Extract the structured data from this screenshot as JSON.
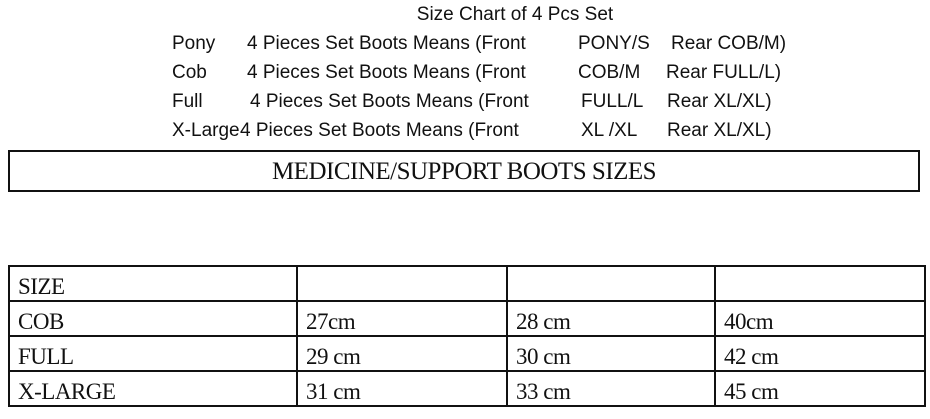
{
  "header": {
    "title": "Size Chart of 4 Pcs Set",
    "rows": [
      {
        "size": "Pony",
        "desc": "4 Pieces Set Boots Means (Front",
        "front": "PONY/S",
        "rear": "Rear COB/M)"
      },
      {
        "size": "Cob",
        "desc": "4 Pieces Set Boots Means (Front",
        "front": "COB/M",
        "rear": "Rear FULL/L)"
      },
      {
        "size": "Full",
        "desc": "4 Pieces Set Boots Means (Front",
        "front": "FULL/L",
        "rear": "Rear XL/XL)"
      },
      {
        "size": "X-Large",
        "desc": "4 Pieces Set Boots Means (Front",
        "front": "XL /XL",
        "rear": "Rear XL/XL)"
      }
    ]
  },
  "banner": "MEDICINE/SUPPORT BOOTS SIZES",
  "table": {
    "header": [
      "SIZE",
      "",
      "",
      ""
    ],
    "rows": [
      [
        "COB",
        "27cm",
        "28 cm",
        "40cm"
      ],
      [
        "FULL",
        "29 cm",
        "30 cm",
        "42 cm"
      ],
      [
        "X-LARGE",
        "31 cm",
        "33 cm",
        "45 cm"
      ]
    ]
  }
}
